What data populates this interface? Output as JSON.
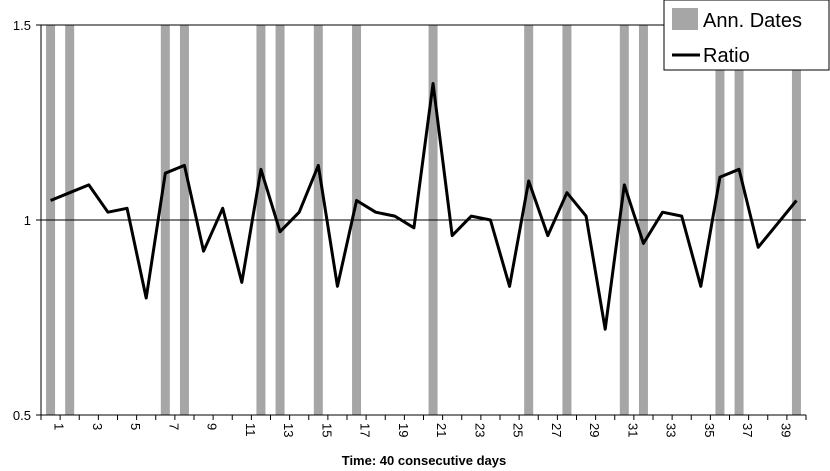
{
  "chart_data": {
    "type": "line",
    "title": "",
    "xlabel": "Time: 40 consecutive days",
    "ylabel": "",
    "ylim": [
      0.5,
      1.5
    ],
    "y_ticks": [
      "0.5",
      "1",
      "1.5"
    ],
    "x": [
      1,
      2,
      3,
      4,
      5,
      6,
      7,
      8,
      9,
      10,
      11,
      12,
      13,
      14,
      15,
      16,
      17,
      18,
      19,
      20,
      21,
      22,
      23,
      24,
      25,
      26,
      27,
      28,
      29,
      30,
      31,
      32,
      33,
      34,
      35,
      36,
      37,
      38,
      39,
      40
    ],
    "x_tick_labels": [
      "1",
      "3",
      "5",
      "7",
      "9",
      "11",
      "13",
      "15",
      "17",
      "19",
      "21",
      "23",
      "25",
      "27",
      "29",
      "31",
      "33",
      "35",
      "37",
      "39"
    ],
    "reference_line": 1,
    "grid": false,
    "legend_position": "top-right",
    "series": [
      {
        "name": "Ratio",
        "type": "line",
        "color": "#000000",
        "values": [
          1.05,
          1.07,
          1.09,
          1.02,
          1.03,
          0.8,
          1.12,
          1.14,
          0.92,
          1.03,
          0.84,
          1.13,
          0.97,
          1.02,
          1.14,
          0.83,
          1.05,
          1.02,
          1.01,
          0.98,
          1.35,
          0.96,
          1.01,
          1.0,
          0.83,
          1.1,
          0.96,
          1.07,
          1.01,
          0.72,
          1.09,
          0.94,
          1.02,
          1.01,
          0.83,
          1.11,
          1.13,
          0.93,
          0.99,
          1.05
        ]
      },
      {
        "name": "Ann. Dates",
        "type": "bar",
        "color": "#a6a6a6",
        "days": [
          1,
          2,
          7,
          8,
          12,
          13,
          15,
          17,
          21,
          26,
          28,
          31,
          32,
          36,
          37,
          40
        ]
      }
    ]
  }
}
